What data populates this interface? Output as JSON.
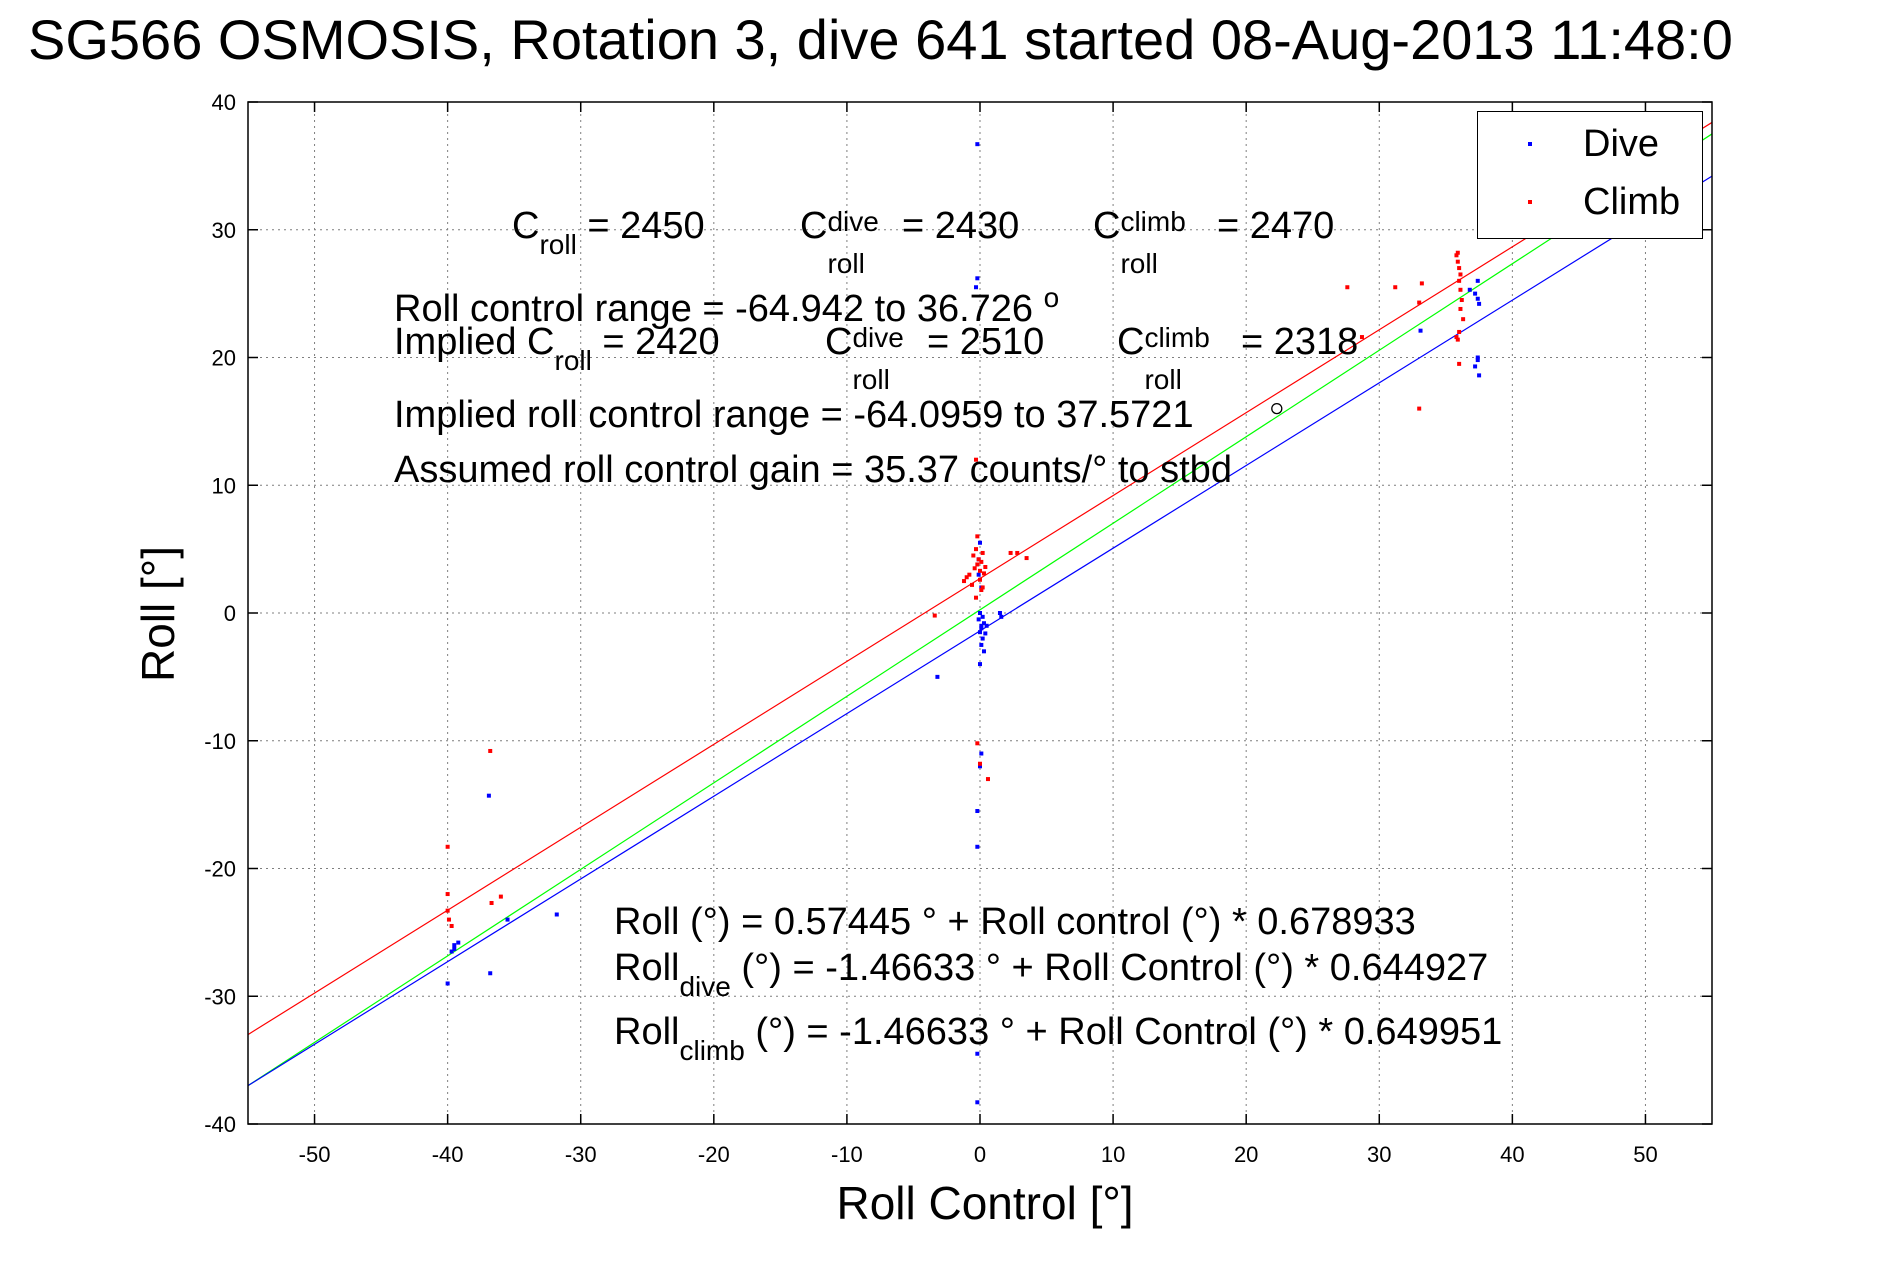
{
  "title": "SG566 OSMOSIS, Rotation 3, dive 641 started 08-Aug-2013 11:48:0",
  "annotations": {
    "c_roll_label": "C",
    "c_roll_sub": "roll",
    "c_roll_val": " = 2450",
    "c_dive_label": "C",
    "c_dive_sup": "dive",
    "c_dive_sub": "roll",
    "c_dive_val": " = 2430",
    "c_climb_label": "C",
    "c_climb_sup": "climb",
    "c_climb_sub": "roll",
    "c_climb_val": " = 2470",
    "range_line": "Roll control range = -64.942 to 36.726",
    "degree_sym": "o",
    "implied_label": "Implied C",
    "implied_sub": "roll",
    "implied_val": " = 2420",
    "implied_dive_label": "C",
    "implied_dive_sup": "dive",
    "implied_dive_sub": "roll",
    "implied_dive_val": " = 2510",
    "implied_climb_label": "C",
    "implied_climb_sup": "climb",
    "implied_climb_sub": "roll",
    "implied_climb_val": " = 2318",
    "implied_range_line": "Implied roll control range = -64.0959 to 37.5721",
    "gain_line": "Assumed roll control gain = 35.37 counts/° to stbd",
    "eq1": "Roll (°) = 0.57445 ° + Roll control (°) * 0.678933",
    "eq2_a": "Roll",
    "eq2_sub": "dive",
    "eq2_b": " (°) = -1.46633 ° + Roll Control (°) * 0.644927",
    "eq3_a": "Roll",
    "eq3_sub": "climb",
    "eq3_b": " (°) = -1.46633 ° + Roll Control (°) * 0.649951"
  },
  "legend": {
    "dive": "Dive",
    "climb": "Climb"
  },
  "colors": {
    "dive": "#0000ff",
    "climb": "#ff0000",
    "fit": "#00ff00"
  },
  "chart_data": {
    "type": "scatter",
    "xlabel": "Roll Control [°]",
    "ylabel": "Roll [°]",
    "xlim": [
      -55,
      55
    ],
    "ylim": [
      -40,
      40
    ],
    "xticks": [
      -50,
      -40,
      -30,
      -20,
      -10,
      0,
      10,
      20,
      30,
      40,
      50
    ],
    "yticks": [
      -40,
      -30,
      -20,
      -10,
      0,
      10,
      20,
      30,
      40
    ],
    "grid": true,
    "legend_position": "top-right",
    "series": [
      {
        "name": "Dive",
        "color": "#0000ff",
        "points": [
          [
            -40,
            -29
          ],
          [
            -39.5,
            -26.3
          ],
          [
            -39.5,
            -26
          ],
          [
            -39.2,
            -25.8
          ],
          [
            -39.7,
            -26.5
          ],
          [
            -36.8,
            -28.2
          ],
          [
            -36.9,
            -14.3
          ],
          [
            -35.5,
            -24
          ],
          [
            -31.8,
            -23.6
          ],
          [
            -3.2,
            -5
          ],
          [
            -0.2,
            36.7
          ],
          [
            -0.2,
            26.2
          ],
          [
            -0.3,
            25.5
          ],
          [
            0,
            5.5
          ],
          [
            -0.1,
            4.2
          ],
          [
            -0.1,
            3
          ],
          [
            0.1,
            2
          ],
          [
            0,
            0
          ],
          [
            -0.1,
            -0.5
          ],
          [
            0.1,
            -1
          ],
          [
            0,
            -1.5
          ],
          [
            0.2,
            -2
          ],
          [
            0.1,
            -2.5
          ],
          [
            0.3,
            -3
          ],
          [
            0,
            -4
          ],
          [
            0.1,
            -1.2
          ],
          [
            0.3,
            -0.8
          ],
          [
            0.4,
            -1.6
          ],
          [
            0.5,
            -1
          ],
          [
            0.2,
            -0.3
          ],
          [
            1.5,
            0
          ],
          [
            1.6,
            -0.3
          ],
          [
            0.1,
            -11
          ],
          [
            0,
            -12
          ],
          [
            -0.2,
            -15.5
          ],
          [
            -0.2,
            -18.3
          ],
          [
            -0.2,
            -34.5
          ],
          [
            -0.2,
            -38.3
          ],
          [
            33.1,
            22.1
          ],
          [
            36.8,
            25.3
          ],
          [
            37.2,
            25
          ],
          [
            37.4,
            24.6
          ],
          [
            37.4,
            26
          ],
          [
            37.5,
            24.2
          ],
          [
            37.2,
            19.3
          ],
          [
            37.5,
            18.6
          ],
          [
            37.4,
            19.8
          ],
          [
            37.4,
            20
          ]
        ]
      },
      {
        "name": "Climb",
        "color": "#ff0000",
        "points": [
          [
            -40,
            -18.3
          ],
          [
            -40,
            -22
          ],
          [
            -40,
            -23.3
          ],
          [
            -39.9,
            -24
          ],
          [
            -39.7,
            -24.5
          ],
          [
            -36.8,
            -10.8
          ],
          [
            -36.7,
            -22.7
          ],
          [
            -36,
            -22.2
          ],
          [
            -3.4,
            -0.2
          ],
          [
            -1.2,
            2.5
          ],
          [
            -1.0,
            2.8
          ],
          [
            -0.8,
            3
          ],
          [
            -0.6,
            2.2
          ],
          [
            -0.5,
            4.5
          ],
          [
            -0.4,
            3.5
          ],
          [
            -0.3,
            5
          ],
          [
            -0.2,
            3.8
          ],
          [
            -0.1,
            4.2
          ],
          [
            0,
            2.6
          ],
          [
            0,
            3.3
          ],
          [
            0.1,
            4
          ],
          [
            0.2,
            4.7
          ],
          [
            0.3,
            3.1
          ],
          [
            0.1,
            1.8
          ],
          [
            -0.3,
            1.2
          ],
          [
            0.2,
            2
          ],
          [
            0.4,
            3.6
          ],
          [
            -0.2,
            6
          ],
          [
            -0.3,
            12
          ],
          [
            -0.2,
            -10.2
          ],
          [
            0,
            -11.8
          ],
          [
            0.6,
            -13
          ],
          [
            2.3,
            4.7
          ],
          [
            2.8,
            4.7
          ],
          [
            3.5,
            4.3
          ],
          [
            27.6,
            25.5
          ],
          [
            28.7,
            21.6
          ],
          [
            31.2,
            25.5
          ],
          [
            33,
            16
          ],
          [
            33,
            24.3
          ],
          [
            33.2,
            25.8
          ],
          [
            35.8,
            21.6
          ],
          [
            35.9,
            21.4
          ],
          [
            36,
            22
          ],
          [
            36,
            19.5
          ],
          [
            35.8,
            28
          ],
          [
            35.9,
            27.5
          ],
          [
            36,
            27
          ],
          [
            36.1,
            26.5
          ],
          [
            36,
            26
          ],
          [
            36.1,
            25.3
          ],
          [
            36.2,
            24.5
          ],
          [
            36.1,
            23.8
          ],
          [
            36.3,
            23
          ],
          [
            35.9,
            28.2
          ]
        ]
      }
    ],
    "fit_lines": [
      {
        "name": "Climb fit",
        "color": "#ff0000",
        "x": [
          -55,
          55
        ],
        "y": [
          -33,
          38.4
        ]
      },
      {
        "name": "Overall fit",
        "color": "#00ff00",
        "x": [
          -55,
          55
        ],
        "y": [
          -37,
          37.5
        ]
      },
      {
        "name": "Dive fit",
        "color": "#0000ff",
        "x": [
          -55,
          55
        ],
        "y": [
          -37,
          34.2
        ]
      }
    ],
    "markers": [
      {
        "x": 22.3,
        "y": 16,
        "shape": "circle"
      }
    ]
  }
}
